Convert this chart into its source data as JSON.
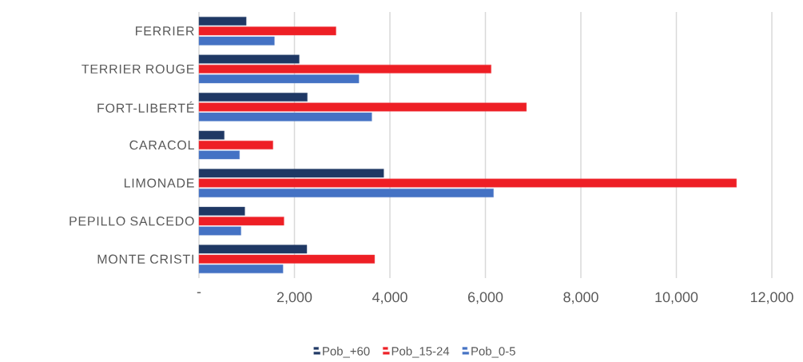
{
  "chart_data": {
    "type": "bar",
    "orientation": "horizontal",
    "categories": [
      "FERRIER",
      "TERRIER ROUGE",
      "FORT-LIBERTÉ",
      "CARACOL",
      "LIMONADE",
      "PEPILLO SALCEDO",
      "MONTE CRISTI"
    ],
    "series": [
      {
        "name": "Pob_+60",
        "color": "#1f3864",
        "values": [
          990,
          2100,
          2270,
          530,
          3870,
          960,
          2260
        ]
      },
      {
        "name": "Pob_15-24",
        "color": "#ee1f25",
        "values": [
          2870,
          6120,
          6860,
          1550,
          11260,
          1780,
          3680
        ]
      },
      {
        "name": "Pob_0-5",
        "color": "#4472c4",
        "values": [
          1580,
          3350,
          3620,
          850,
          6170,
          880,
          1760
        ]
      }
    ],
    "xlim": [
      0,
      12000
    ],
    "xticks": [
      {
        "value": 0,
        "label": "-"
      },
      {
        "value": 2000,
        "label": "2,000"
      },
      {
        "value": 4000,
        "label": "4,000"
      },
      {
        "value": 6000,
        "label": "6,000"
      },
      {
        "value": 8000,
        "label": "8,000"
      },
      {
        "value": 10000,
        "label": "10,000"
      },
      {
        "value": 12000,
        "label": "12,000"
      }
    ],
    "grid": "x",
    "legend": "bottom"
  }
}
